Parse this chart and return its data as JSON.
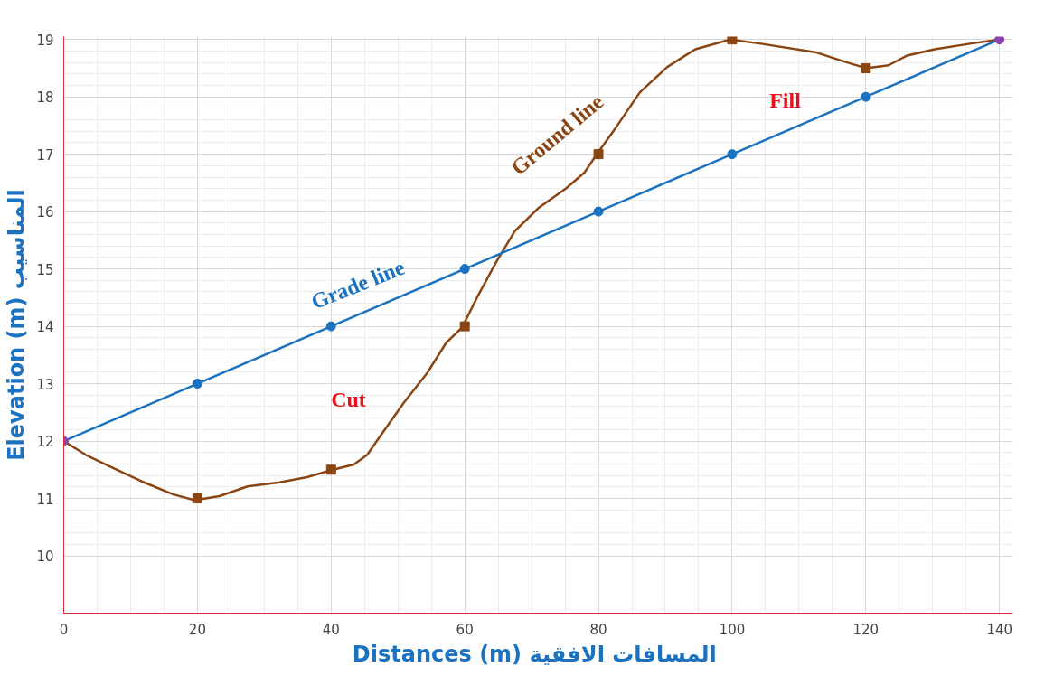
{
  "chart_data": {
    "type": "line",
    "xlabel": "Distances (m)  المسافات الافقية",
    "ylabel": "Elevation (m) المناسيب",
    "xlim": [
      0,
      142
    ],
    "ylim": [
      9,
      19.05
    ],
    "xticks": [
      0,
      20,
      40,
      60,
      80,
      100,
      120,
      140
    ],
    "yticks": [
      10,
      11,
      12,
      13,
      14,
      15,
      16,
      17,
      18,
      19
    ],
    "grid": true,
    "series": [
      {
        "color": "#8b4513",
        "marker": "none",
        "x": [
          0,
          3.3,
          6.8,
          11.6,
          16.4,
          19.6,
          23.3,
          27.5,
          32.3,
          36.4,
          39.9,
          43.4,
          45.4,
          47.5,
          50.9,
          54.4,
          57.2,
          59.6,
          62,
          64.8,
          67.5,
          71,
          75.1,
          77.9,
          79.7,
          82.7,
          86.2,
          90.3,
          94.5,
          99.7,
          104.1,
          112.4,
          117.2,
          120,
          123.4,
          126.2,
          130.3,
          135.8,
          140
        ],
        "values": [
          12,
          11.76,
          11.56,
          11.3,
          11.07,
          10.97,
          11.04,
          11.21,
          11.28,
          11.37,
          11.49,
          11.59,
          11.76,
          12.11,
          12.67,
          13.19,
          13.71,
          13.98,
          14.54,
          15.14,
          15.66,
          16.06,
          16.4,
          16.68,
          16.99,
          17.48,
          18.08,
          18.52,
          18.83,
          19,
          18.93,
          18.78,
          18.6,
          18.5,
          18.55,
          18.72,
          18.83,
          18.93,
          19
        ]
      },
      {
        "type": "scatter",
        "color": "#8b4513",
        "marker": "square",
        "x": [
          20,
          40,
          60,
          80,
          100,
          120
        ],
        "values": [
          11,
          11.5,
          14,
          17,
          19,
          18.5
        ]
      },
      {
        "color": "#1a72c0",
        "marker": "circle",
        "x": [
          0,
          20,
          40,
          60,
          80,
          100,
          120,
          140
        ],
        "values": [
          12,
          13,
          14,
          15,
          16,
          17,
          18,
          19
        ],
        "colors": [
          "#8e44ad",
          "#1a72c0",
          "#1a72c0",
          "#1a72c0",
          "#1a72c0",
          "#1a72c0",
          "#1a72c0",
          "#8e44ad"
        ]
      }
    ],
    "annotations": [
      "Grade line",
      "Ground line",
      "Cut",
      "Fill"
    ]
  }
}
